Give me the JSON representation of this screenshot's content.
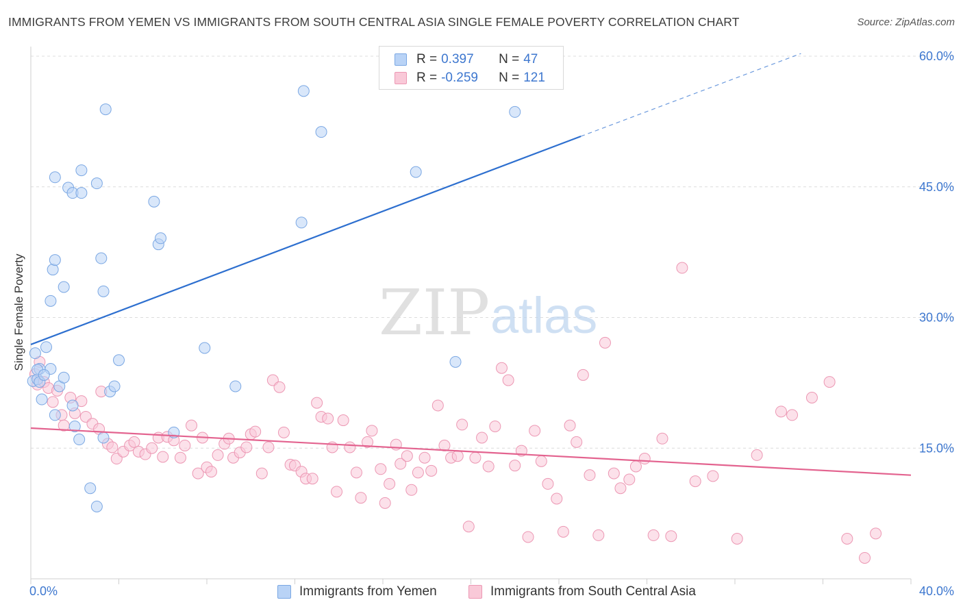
{
  "title": "IMMIGRANTS FROM YEMEN VS IMMIGRANTS FROM SOUTH CENTRAL ASIA SINGLE FEMALE POVERTY CORRELATION CHART",
  "source": "Source: ZipAtlas.com",
  "watermark": {
    "zip": "ZIP",
    "atlas": "atlas"
  },
  "legend": {
    "r_label": "R =",
    "n_label": "N =",
    "series1": {
      "r": "0.397",
      "n": "47"
    },
    "series2": {
      "r": "-0.259",
      "n": "121"
    }
  },
  "colors": {
    "blue_fill": "#b9d3f6",
    "blue_stroke": "#7aa7e3",
    "blue_line": "#2d6fcf",
    "pink_fill": "#f9c9d8",
    "pink_stroke": "#ec97b3",
    "pink_line": "#e3638f",
    "tick_label": "#3d77cf"
  },
  "chart_data": {
    "type": "scatter",
    "title": "IMMIGRANTS FROM YEMEN VS IMMIGRANTS FROM SOUTH CENTRAL ASIA SINGLE FEMALE POVERTY CORRELATION CHART",
    "xlabel": "",
    "ylabel": "Single Female Poverty",
    "xlim": [
      0,
      40
    ],
    "ylim": [
      0,
      60
    ],
    "x_tick_labels": [
      "0.0%",
      "40.0%"
    ],
    "y_ticks": [
      {
        "value": 15,
        "label": "15.0%"
      },
      {
        "value": 30,
        "label": "30.0%"
      },
      {
        "value": 45,
        "label": "45.0%"
      },
      {
        "value": 60,
        "label": "60.0%"
      }
    ],
    "series": [
      {
        "name": "Immigrants from Yemen",
        "color": "blue",
        "trend": {
          "x0": 0,
          "y0": 26.9,
          "x1": 25,
          "y1": 50.8,
          "dash_to_x": 35,
          "dash_to_y": 60.3
        },
        "points": [
          [
            0.1,
            22.7
          ],
          [
            0.2,
            25.9
          ],
          [
            0.3,
            22.9
          ],
          [
            0.4,
            24.1
          ],
          [
            0.4,
            22.6
          ],
          [
            0.5,
            20.6
          ],
          [
            0.7,
            26.6
          ],
          [
            0.9,
            24.1
          ],
          [
            1.1,
            18.8
          ],
          [
            1.3,
            22.1
          ],
          [
            1.5,
            23.1
          ],
          [
            1.9,
            19.9
          ],
          [
            2.0,
            17.5
          ],
          [
            2.2,
            16.0
          ],
          [
            2.7,
            10.4
          ],
          [
            3.0,
            8.3
          ],
          [
            3.3,
            16.2
          ],
          [
            3.6,
            21.5
          ],
          [
            3.8,
            22.1
          ],
          [
            4.0,
            25.1
          ],
          [
            0.9,
            31.9
          ],
          [
            1.0,
            35.5
          ],
          [
            1.1,
            36.6
          ],
          [
            1.5,
            33.5
          ],
          [
            1.1,
            46.1
          ],
          [
            1.7,
            44.9
          ],
          [
            1.9,
            44.3
          ],
          [
            2.3,
            44.3
          ],
          [
            2.3,
            46.9
          ],
          [
            3.0,
            45.4
          ],
          [
            3.2,
            36.8
          ],
          [
            3.3,
            33.0
          ],
          [
            3.4,
            53.9
          ],
          [
            5.6,
            43.3
          ],
          [
            5.8,
            38.4
          ],
          [
            5.9,
            39.1
          ],
          [
            6.5,
            16.8
          ],
          [
            7.9,
            26.5
          ],
          [
            9.3,
            22.1
          ],
          [
            12.3,
            40.9
          ],
          [
            12.4,
            56.0
          ],
          [
            13.2,
            51.3
          ],
          [
            17.5,
            46.7
          ],
          [
            19.3,
            24.9
          ],
          [
            22.0,
            53.6
          ],
          [
            0.3,
            24.0
          ],
          [
            0.6,
            23.4
          ]
        ]
      },
      {
        "name": "Immigrants from South Central Asia",
        "color": "pink",
        "trend": {
          "x0": 0,
          "y0": 17.3,
          "x1": 40,
          "y1": 11.9
        },
        "points": [
          [
            0.2,
            23.5
          ],
          [
            0.3,
            22.3
          ],
          [
            0.4,
            24.9
          ],
          [
            0.6,
            22.6
          ],
          [
            0.8,
            21.9
          ],
          [
            1.0,
            20.3
          ],
          [
            1.2,
            21.6
          ],
          [
            1.4,
            18.8
          ],
          [
            1.5,
            17.6
          ],
          [
            1.8,
            20.8
          ],
          [
            2.0,
            19.0
          ],
          [
            2.3,
            20.4
          ],
          [
            2.5,
            18.6
          ],
          [
            2.8,
            17.8
          ],
          [
            3.1,
            17.2
          ],
          [
            3.2,
            21.5
          ],
          [
            3.5,
            15.5
          ],
          [
            3.7,
            15.1
          ],
          [
            3.9,
            13.8
          ],
          [
            4.2,
            14.6
          ],
          [
            4.5,
            15.3
          ],
          [
            4.7,
            15.7
          ],
          [
            4.9,
            14.6
          ],
          [
            5.2,
            14.3
          ],
          [
            5.5,
            15.0
          ],
          [
            5.8,
            16.2
          ],
          [
            6.0,
            14.0
          ],
          [
            6.2,
            16.3
          ],
          [
            6.5,
            15.9
          ],
          [
            6.8,
            13.9
          ],
          [
            7.0,
            15.3
          ],
          [
            7.3,
            17.6
          ],
          [
            7.6,
            12.1
          ],
          [
            7.8,
            16.2
          ],
          [
            8.0,
            12.8
          ],
          [
            8.2,
            12.3
          ],
          [
            8.5,
            14.2
          ],
          [
            8.8,
            15.5
          ],
          [
            9.0,
            16.1
          ],
          [
            9.2,
            13.9
          ],
          [
            9.5,
            14.5
          ],
          [
            9.8,
            15.1
          ],
          [
            10.0,
            16.6
          ],
          [
            10.2,
            16.9
          ],
          [
            10.5,
            12.1
          ],
          [
            10.8,
            15.1
          ],
          [
            11.0,
            22.8
          ],
          [
            11.3,
            22.0
          ],
          [
            11.5,
            16.8
          ],
          [
            11.8,
            13.1
          ],
          [
            12.0,
            13.0
          ],
          [
            12.3,
            12.3
          ],
          [
            12.5,
            11.5
          ],
          [
            12.8,
            11.5
          ],
          [
            13.0,
            20.2
          ],
          [
            13.2,
            18.6
          ],
          [
            13.5,
            18.4
          ],
          [
            13.7,
            15.1
          ],
          [
            13.9,
            10.0
          ],
          [
            14.2,
            18.2
          ],
          [
            14.5,
            15.1
          ],
          [
            14.8,
            12.2
          ],
          [
            15.0,
            9.3
          ],
          [
            15.3,
            15.7
          ],
          [
            15.5,
            17.0
          ],
          [
            15.9,
            12.6
          ],
          [
            16.1,
            8.7
          ],
          [
            16.3,
            10.9
          ],
          [
            16.6,
            15.4
          ],
          [
            16.8,
            13.2
          ],
          [
            17.1,
            14.1
          ],
          [
            17.3,
            10.2
          ],
          [
            17.6,
            12.2
          ],
          [
            17.9,
            13.9
          ],
          [
            18.2,
            12.4
          ],
          [
            18.5,
            19.9
          ],
          [
            18.8,
            15.3
          ],
          [
            19.1,
            13.9
          ],
          [
            19.4,
            14.1
          ],
          [
            19.6,
            17.7
          ],
          [
            19.9,
            6.0
          ],
          [
            20.2,
            13.9
          ],
          [
            20.5,
            16.2
          ],
          [
            20.8,
            12.9
          ],
          [
            21.1,
            17.5
          ],
          [
            21.4,
            24.2
          ],
          [
            21.7,
            22.8
          ],
          [
            22.0,
            13.0
          ],
          [
            22.3,
            14.7
          ],
          [
            22.6,
            4.8
          ],
          [
            22.9,
            17.0
          ],
          [
            23.2,
            13.5
          ],
          [
            23.5,
            10.9
          ],
          [
            23.9,
            9.2
          ],
          [
            24.2,
            5.4
          ],
          [
            24.5,
            17.6
          ],
          [
            24.8,
            15.7
          ],
          [
            25.1,
            23.4
          ],
          [
            25.4,
            11.9
          ],
          [
            25.8,
            5.0
          ],
          [
            26.1,
            27.1
          ],
          [
            26.5,
            12.1
          ],
          [
            26.8,
            10.4
          ],
          [
            27.2,
            11.4
          ],
          [
            27.5,
            12.9
          ],
          [
            27.9,
            13.8
          ],
          [
            28.3,
            5.0
          ],
          [
            28.7,
            16.1
          ],
          [
            29.1,
            4.9
          ],
          [
            29.6,
            35.7
          ],
          [
            30.2,
            11.2
          ],
          [
            31.0,
            11.8
          ],
          [
            32.1,
            4.6
          ],
          [
            33.0,
            14.2
          ],
          [
            34.1,
            19.2
          ],
          [
            34.6,
            18.8
          ],
          [
            35.5,
            20.8
          ],
          [
            36.3,
            22.6
          ],
          [
            37.1,
            4.6
          ],
          [
            37.9,
            2.4
          ],
          [
            38.4,
            5.2
          ]
        ]
      }
    ]
  }
}
